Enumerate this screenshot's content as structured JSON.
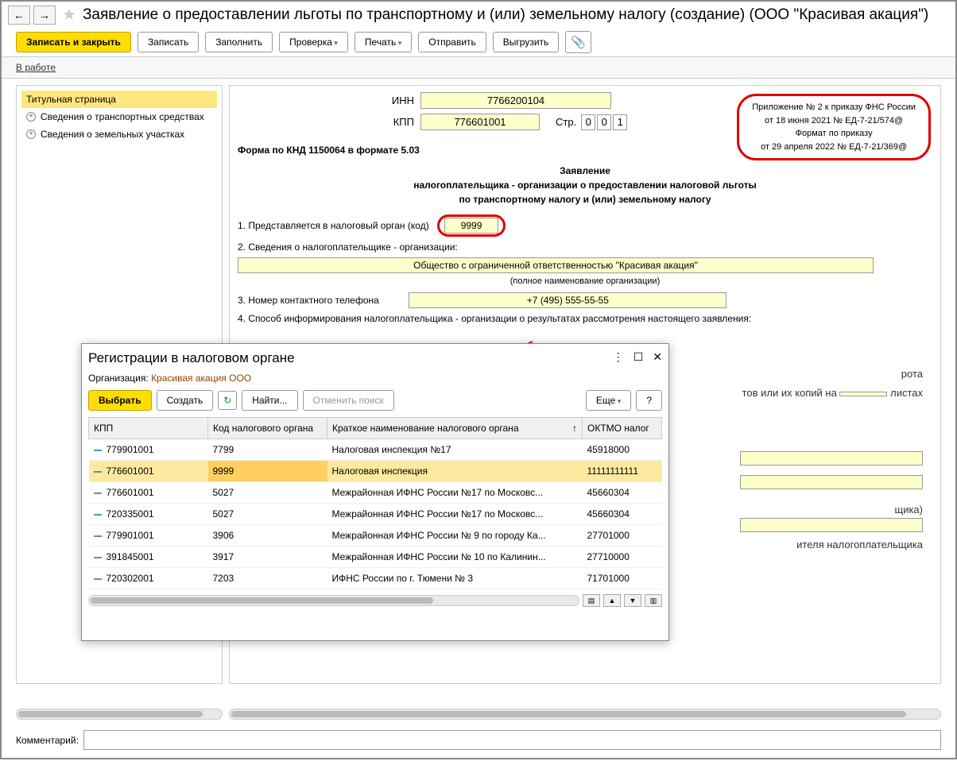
{
  "title": "Заявление о предоставлении льготы по транспортному и (или) земельному налогу (создание) (ООО \"Красивая акация\")",
  "toolbar": {
    "save_close": "Записать и закрыть",
    "save": "Записать",
    "fill": "Заполнить",
    "check": "Проверка",
    "print": "Печать",
    "send": "Отправить",
    "export": "Выгрузить"
  },
  "status": "В работе",
  "sidebar": {
    "items": [
      {
        "label": "Титульная страница",
        "active": true
      },
      {
        "label": "Сведения о транспортных средствах",
        "expandable": true
      },
      {
        "label": "Сведения о земельных участках",
        "expandable": true
      }
    ]
  },
  "form": {
    "inn_label": "ИНН",
    "inn": "7766200104",
    "kpp_label": "КПП",
    "kpp": "776601001",
    "page_label": "Стр.",
    "page": [
      "0",
      "0",
      "1"
    ],
    "note": {
      "l1": "Приложение № 2 к приказу ФНС России",
      "l2": "от 18 июня 2021 № ЕД-7-21/574@",
      "l3": "Формат по приказу",
      "l4": "от 29 апреля 2022 № ЕД-7-21/369@"
    },
    "knd": "Форма по КНД 1150064 в формате 5.03",
    "heading": {
      "l1": "Заявление",
      "l2": "налогоплательщика - организации о предоставлении налоговой льготы",
      "l3": "по транспортному налогу и (или) земельному налогу"
    },
    "p1_label": "1. Представляется в налоговый орган (код)",
    "p1_code": "9999",
    "p2_label": "2. Сведения о налогоплательщике - организации:",
    "org_name": "Общество с ограниченной ответственностью \"Красивая акация\"",
    "org_hint": "(полное наименование организации)",
    "p3_label": "3. Номер контактного телефона",
    "phone": "+7 (495) 555-55-55",
    "p4_label": "4. Способ информирования налогоплательщика - организации о результатах рассмотрения настоящего заявления:",
    "trail1": "рота",
    "trail2a": "тов или их копий на",
    "trail2b": "листах",
    "trail3": "щика)",
    "trail4": "ителя налогоплательщика"
  },
  "dialog": {
    "title": "Регистрации в налоговом органе",
    "org_label": "Организация:",
    "org": "Красивая акация ООО",
    "btn_select": "Выбрать",
    "btn_create": "Создать",
    "btn_find": "Найти...",
    "btn_cancel": "Отменить поиск",
    "btn_more": "Еще",
    "columns": [
      "КПП",
      "Код налогового органа",
      "Краткое наименование налогового органа",
      "ОКТМО налог"
    ],
    "rows": [
      {
        "kpp": "779901001",
        "code": "7799",
        "name": "Налоговая инспекция №17",
        "oktmo": "45918000",
        "sel": false
      },
      {
        "kpp": "776601001",
        "code": "9999",
        "name": "Налоговая инспекция",
        "oktmo": "11111111111",
        "sel": true
      },
      {
        "kpp": "776601001",
        "code": "5027",
        "name": "Межрайонная ИФНС России №17 по Московс...",
        "oktmo": "45660304",
        "sel": false
      },
      {
        "kpp": "720335001",
        "code": "5027",
        "name": "Межрайонная ИФНС России №17 по Московс...",
        "oktmo": "45660304",
        "sel": false
      },
      {
        "kpp": "779901001",
        "code": "3906",
        "name": "Межрайонная ИФНС России № 9 по городу Ка...",
        "oktmo": "27701000",
        "sel": false
      },
      {
        "kpp": "391845001",
        "code": "3917",
        "name": "Межрайонная ИФНС России № 10 по Калинин...",
        "oktmo": "27710000",
        "sel": false
      },
      {
        "kpp": "720302001",
        "code": "7203",
        "name": "ИФНС России по г. Тюмени № 3",
        "oktmo": "71701000",
        "sel": false
      }
    ]
  },
  "comment_label": "Комментарий:"
}
